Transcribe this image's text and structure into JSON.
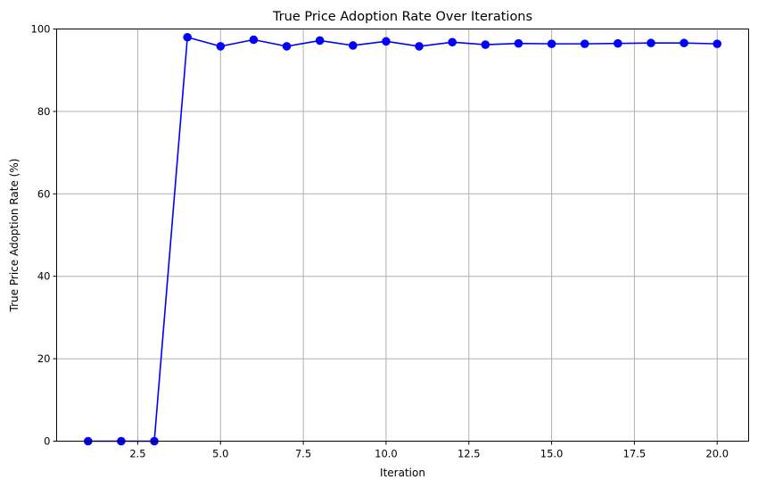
{
  "chart_data": {
    "type": "line",
    "title": "True Price Adoption Rate Over Iterations",
    "xlabel": "Iteration",
    "ylabel": "True Price Adoption Rate (%)",
    "xlim": [
      0.05,
      20.95
    ],
    "ylim": [
      0,
      100
    ],
    "x_ticks": [
      2.5,
      5.0,
      7.5,
      10.0,
      12.5,
      15.0,
      17.5,
      20.0
    ],
    "x_tick_labels": [
      "2.5",
      "5.0",
      "7.5",
      "10.0",
      "12.5",
      "15.0",
      "17.5",
      "20.0"
    ],
    "y_ticks": [
      0,
      20,
      40,
      60,
      80,
      100
    ],
    "y_tick_labels": [
      "0",
      "20",
      "40",
      "60",
      "80",
      "100"
    ],
    "grid": true,
    "series": [
      {
        "color": "#0000ff",
        "marker": "circle",
        "x": [
          1,
          2,
          3,
          4,
          5,
          6,
          7,
          8,
          9,
          10,
          11,
          12,
          13,
          14,
          15,
          16,
          17,
          18,
          19,
          20
        ],
        "y": [
          0,
          0,
          0,
          98.0,
          95.8,
          97.4,
          95.8,
          97.2,
          96.0,
          97.0,
          95.8,
          96.8,
          96.2,
          96.5,
          96.4,
          96.4,
          96.5,
          96.6,
          96.6,
          96.4
        ]
      }
    ]
  }
}
